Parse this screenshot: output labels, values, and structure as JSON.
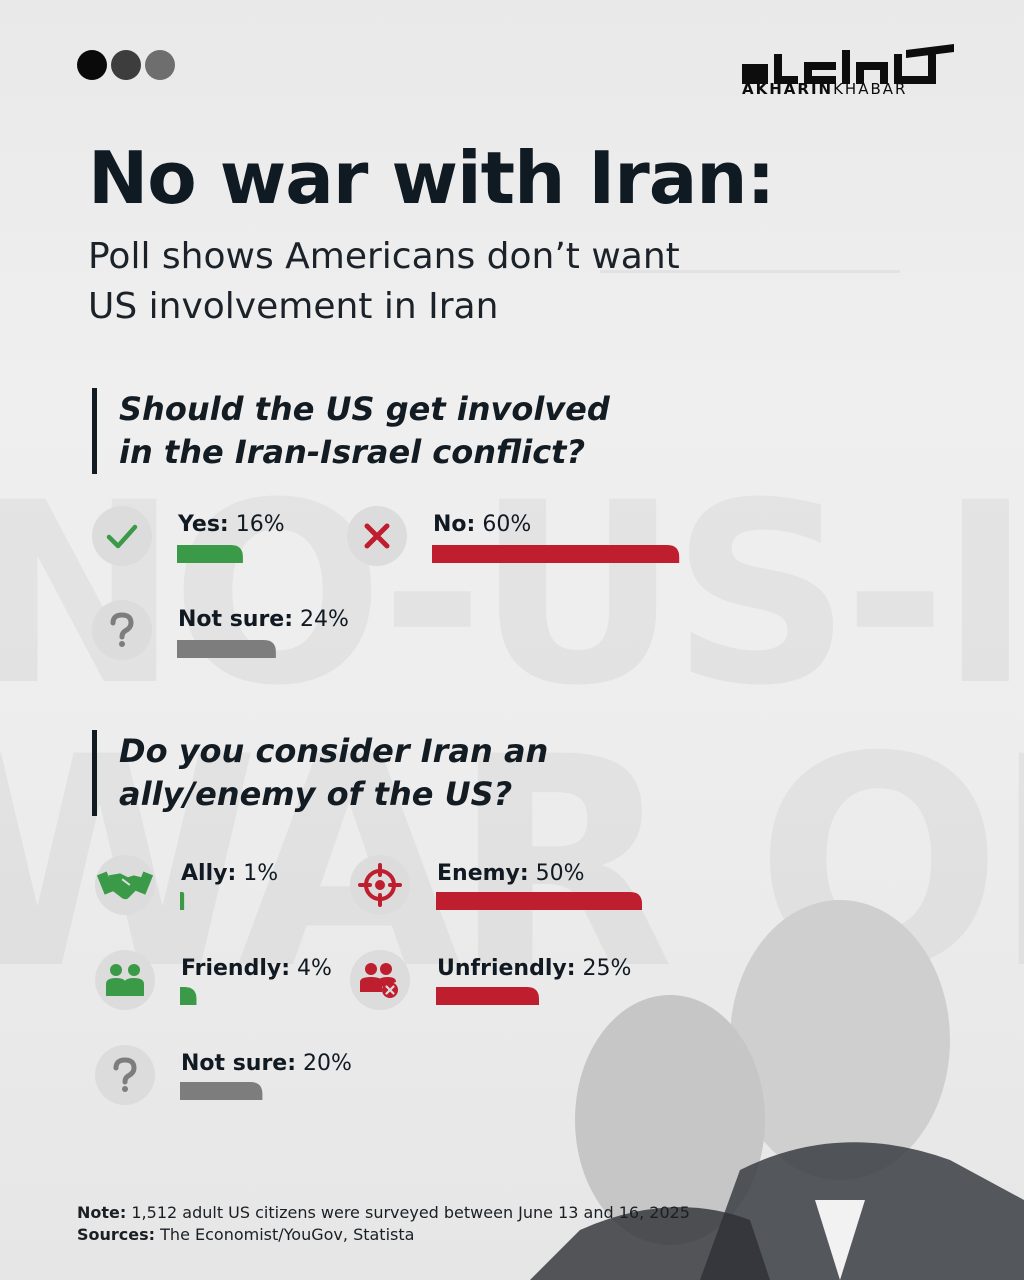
{
  "brand": {
    "logo_text_bold": "AKHARIN",
    "logo_text_light": "KHABAR",
    "logo_mark_name": "akharin-khabar-logo",
    "dot_colors": [
      "#0a0a0a",
      "#3d3d3d",
      "#6e6e6e"
    ]
  },
  "header": {
    "title": "No war with Iran:",
    "subtitle": "Poll shows Americans don’t want\nUS involvement in Iran"
  },
  "background_words": {
    "line1": "NO-US-ISR",
    "line2": "WAR ON"
  },
  "colors": {
    "green": "#3a9a47",
    "red": "#bf1e2e",
    "gray": "#7d7d7d",
    "text": "#111a22"
  },
  "chart_data": [
    {
      "type": "bar",
      "title": "Should the US get involved\nin the Iran-Israel conflict?",
      "categories": [
        "Yes",
        "No",
        "Not sure"
      ],
      "values": [
        16,
        60,
        24
      ],
      "unit": "%",
      "icons": [
        "check-icon",
        "x-icon",
        "question-icon"
      ],
      "colors": [
        "#3a9a47",
        "#bf1e2e",
        "#7d7d7d"
      ],
      "value_labels": [
        "16%",
        "60%",
        "24%"
      ]
    },
    {
      "type": "bar",
      "title": "Do you consider Iran an\nally/enemy of the US?",
      "categories": [
        "Ally",
        "Enemy",
        "Friendly",
        "Unfriendly",
        "Not sure"
      ],
      "values": [
        1,
        50,
        4,
        25,
        20
      ],
      "unit": "%",
      "icons": [
        "handshake-icon",
        "target-icon",
        "friends-icon",
        "unfriendly-people-icon",
        "question-icon"
      ],
      "colors": [
        "#3a9a47",
        "#bf1e2e",
        "#3a9a47",
        "#bf1e2e",
        "#7d7d7d"
      ],
      "value_labels": [
        "1%",
        "50%",
        "4%",
        "25%",
        "20%"
      ]
    }
  ],
  "footer": {
    "note_label": "Note:",
    "note_text": "1,512 adult US citizens were surveyed between June 13 and 16, 2025",
    "sources_label": "Sources:",
    "sources_text": "The Economist/YouGov, Statista"
  }
}
